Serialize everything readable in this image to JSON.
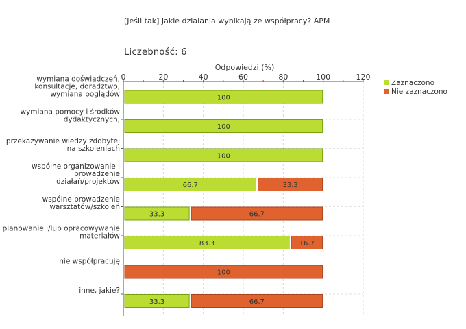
{
  "chart_data": {
    "type": "bar",
    "orientation": "horizontal",
    "stacked": true,
    "title": "[Jeśli tak] Jakie działania wynikają ze współpracy? APM",
    "subtitle": "Liczebność: 6",
    "xlabel": "Odpowiedzi (%)",
    "ylabel": "",
    "xlim": [
      0,
      120
    ],
    "ticks": [
      "0",
      "20",
      "40",
      "60",
      "80",
      "100",
      "120"
    ],
    "grid": true,
    "legend_position": "top-right",
    "categories": [
      [
        "wymiana doświadczeń,",
        "konsultacje, doradztwo,",
        "wymiana poglądów"
      ],
      [
        "wymiana pomocy i środków",
        "dydaktycznych,"
      ],
      [
        "przekazywanie wiedzy zdobytej",
        "na szkoleniach"
      ],
      [
        "wspólne organizowanie i",
        "prowadzenie",
        "działań/projektów"
      ],
      [
        "wspólne prowadzenie",
        "warsztatów/szkoleń"
      ],
      [
        "planowanie i/lub opracowywanie",
        "materiałów"
      ],
      [
        "nie współpracuję"
      ],
      [
        "inne, jakie?"
      ]
    ],
    "series": [
      {
        "name": "Zaznaczono",
        "color": "#bbdd33",
        "values": [
          100,
          100,
          100,
          66.7,
          33.3,
          83.3,
          0,
          33.3
        ],
        "labels": [
          "100",
          "100",
          "100",
          "66.7",
          "33.3",
          "83.3",
          "",
          "33.3"
        ]
      },
      {
        "name": "Nie zaznaczono",
        "color": "#e0622e",
        "values": [
          0,
          0,
          0,
          33.3,
          66.7,
          16.7,
          100,
          66.7
        ],
        "labels": [
          "",
          "",
          "",
          "33.3",
          "66.7",
          "16.7",
          "100",
          "66.7"
        ]
      }
    ]
  }
}
